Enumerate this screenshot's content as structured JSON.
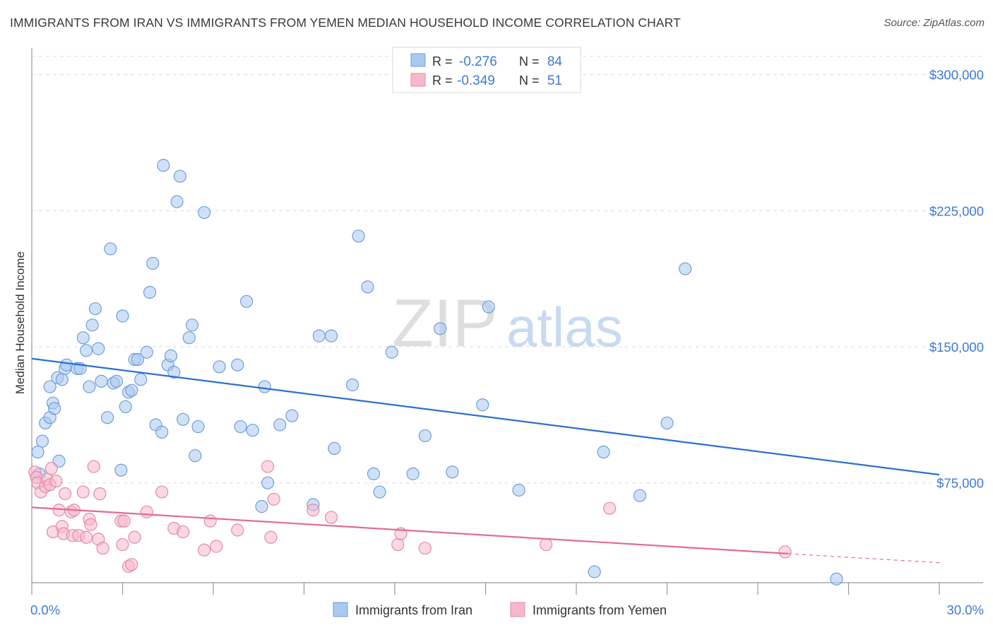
{
  "header": {
    "title": "IMMIGRANTS FROM IRAN VS IMMIGRANTS FROM YEMEN MEDIAN HOUSEHOLD INCOME CORRELATION CHART",
    "source": "Source: ZipAtlas.com"
  },
  "watermark": {
    "left": "ZIP",
    "right": "atlas"
  },
  "colors": {
    "iran_fill": "#a9c9f0",
    "iran_stroke": "#6f9fd8",
    "iran_line": "#2b6fd0",
    "yemen_fill": "#f7b8cc",
    "yemen_stroke": "#e58aa8",
    "yemen_line": "#e06c96",
    "tick_label": "#3f7bd0",
    "grid": "#dcdcdc"
  },
  "legend_top": {
    "r_label": "R =",
    "n_label": "N =",
    "rows": [
      {
        "series": "iran",
        "r": "-0.276",
        "n": "84"
      },
      {
        "series": "yemen",
        "r": "-0.349",
        "n": "51"
      }
    ]
  },
  "chart_data": {
    "type": "scatter",
    "xlabel": "",
    "ylabel": "Median Household Income",
    "xlim": [
      0,
      30
    ],
    "ylim": [
      20000,
      310000
    ],
    "x_tick_labels": [
      "0.0%",
      "30.0%"
    ],
    "y_ticks": [
      75000,
      150000,
      225000,
      300000
    ],
    "y_tick_labels": [
      "$75,000",
      "$150,000",
      "$225,000",
      "$300,000"
    ],
    "grid": true,
    "legend_position": "bottom",
    "series": [
      {
        "name": "Immigrants from Iran",
        "trendline": {
          "x": [
            0,
            30
          ],
          "y": [
            143500,
            79500
          ]
        },
        "points": [
          [
            0.2,
            92000
          ],
          [
            0.35,
            98000
          ],
          [
            0.45,
            108000
          ],
          [
            0.6,
            111000
          ],
          [
            0.6,
            128000
          ],
          [
            0.7,
            119000
          ],
          [
            0.75,
            116000
          ],
          [
            0.85,
            133000
          ],
          [
            0.9,
            87000
          ],
          [
            1.0,
            132000
          ],
          [
            1.1,
            138000
          ],
          [
            1.15,
            140000
          ],
          [
            1.5,
            138000
          ],
          [
            1.6,
            138000
          ],
          [
            1.7,
            155000
          ],
          [
            1.8,
            148000
          ],
          [
            1.9,
            128000
          ],
          [
            2.0,
            162000
          ],
          [
            2.1,
            171000
          ],
          [
            2.2,
            149000
          ],
          [
            2.3,
            131000
          ],
          [
            2.5,
            111000
          ],
          [
            2.6,
            204000
          ],
          [
            2.7,
            130000
          ],
          [
            2.8,
            131000
          ],
          [
            2.95,
            82000
          ],
          [
            3.0,
            167000
          ],
          [
            3.1,
            117000
          ],
          [
            3.2,
            125000
          ],
          [
            3.3,
            126000
          ],
          [
            3.4,
            143000
          ],
          [
            3.5,
            143000
          ],
          [
            3.6,
            132000
          ],
          [
            3.8,
            147000
          ],
          [
            3.9,
            180000
          ],
          [
            4.0,
            196000
          ],
          [
            4.1,
            107000
          ],
          [
            4.3,
            103000
          ],
          [
            4.35,
            250000
          ],
          [
            4.5,
            140000
          ],
          [
            4.6,
            145000
          ],
          [
            4.7,
            136000
          ],
          [
            4.8,
            230000
          ],
          [
            4.9,
            244000
          ],
          [
            5.0,
            110000
          ],
          [
            5.2,
            155000
          ],
          [
            5.3,
            162000
          ],
          [
            5.4,
            90000
          ],
          [
            5.5,
            106000
          ],
          [
            5.7,
            224000
          ],
          [
            6.2,
            139000
          ],
          [
            6.8,
            140000
          ],
          [
            6.9,
            106000
          ],
          [
            7.1,
            175000
          ],
          [
            7.3,
            104000
          ],
          [
            7.6,
            62000
          ],
          [
            7.7,
            128000
          ],
          [
            7.8,
            75000
          ],
          [
            8.2,
            107000
          ],
          [
            8.6,
            112000
          ],
          [
            9.3,
            63000
          ],
          [
            9.5,
            156000
          ],
          [
            9.9,
            156000
          ],
          [
            10.0,
            94000
          ],
          [
            10.6,
            129000
          ],
          [
            10.8,
            211000
          ],
          [
            11.1,
            183000
          ],
          [
            11.3,
            80000
          ],
          [
            11.5,
            70000
          ],
          [
            11.9,
            147000
          ],
          [
            12.6,
            80000
          ],
          [
            13.0,
            101000
          ],
          [
            13.5,
            160000
          ],
          [
            13.9,
            81000
          ],
          [
            14.9,
            118000
          ],
          [
            15.1,
            172000
          ],
          [
            16.1,
            71000
          ],
          [
            18.6,
            26000
          ],
          [
            18.9,
            92000
          ],
          [
            20.1,
            68000
          ],
          [
            21.0,
            108000
          ],
          [
            21.6,
            193000
          ],
          [
            26.6,
            22000
          ],
          [
            0.25,
            80000
          ]
        ]
      },
      {
        "name": "Immigrants from Yemen",
        "trendline": {
          "x": [
            0,
            25
          ],
          "y": [
            61500,
            36000
          ]
        },
        "trendline_dashed": {
          "x": [
            25,
            30
          ],
          "y": [
            36000,
            31000
          ]
        },
        "points": [
          [
            0.1,
            81000
          ],
          [
            0.15,
            78000
          ],
          [
            0.2,
            75000
          ],
          [
            0.3,
            70000
          ],
          [
            0.45,
            73000
          ],
          [
            0.5,
            77000
          ],
          [
            0.6,
            74000
          ],
          [
            0.65,
            83000
          ],
          [
            0.7,
            48000
          ],
          [
            0.8,
            76000
          ],
          [
            0.9,
            60000
          ],
          [
            1.0,
            51000
          ],
          [
            1.05,
            47000
          ],
          [
            1.1,
            69000
          ],
          [
            1.3,
            59000
          ],
          [
            1.35,
            46000
          ],
          [
            1.4,
            60000
          ],
          [
            1.55,
            46000
          ],
          [
            1.7,
            70000
          ],
          [
            1.8,
            45000
          ],
          [
            1.9,
            55000
          ],
          [
            1.95,
            52000
          ],
          [
            2.05,
            84000
          ],
          [
            2.2,
            44000
          ],
          [
            2.25,
            69000
          ],
          [
            2.35,
            39000
          ],
          [
            2.95,
            54000
          ],
          [
            3.0,
            41000
          ],
          [
            3.05,
            54000
          ],
          [
            3.2,
            29000
          ],
          [
            3.3,
            30000
          ],
          [
            3.4,
            45000
          ],
          [
            3.8,
            59000
          ],
          [
            4.3,
            70000
          ],
          [
            4.7,
            50000
          ],
          [
            5.0,
            48000
          ],
          [
            5.7,
            38000
          ],
          [
            5.9,
            54000
          ],
          [
            6.1,
            40000
          ],
          [
            6.8,
            49000
          ],
          [
            7.8,
            84000
          ],
          [
            7.9,
            45000
          ],
          [
            8.0,
            66000
          ],
          [
            9.3,
            60000
          ],
          [
            9.9,
            56000
          ],
          [
            12.1,
            41000
          ],
          [
            12.2,
            47000
          ],
          [
            13.0,
            39000
          ],
          [
            17.0,
            41000
          ],
          [
            19.1,
            61000
          ],
          [
            24.9,
            37000
          ]
        ]
      }
    ]
  }
}
